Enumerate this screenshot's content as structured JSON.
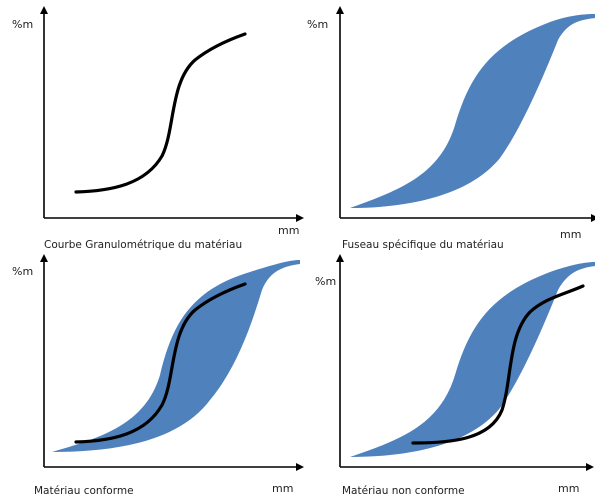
{
  "panels": [
    {
      "id": "curve-only",
      "y_label": "%m",
      "x_label": "mm",
      "caption": "Courbe Granulométrique du matériau",
      "show_band": false,
      "show_curve": true
    },
    {
      "id": "band-only",
      "y_label": "%m",
      "x_label": "mm",
      "caption": "Fuseau spécifique du matériau",
      "show_band": true,
      "show_curve": false
    },
    {
      "id": "conform",
      "y_label": "%m",
      "x_label": "mm",
      "caption": "Matériau conforme",
      "show_band": true,
      "show_curve": true
    },
    {
      "id": "non-conform",
      "y_label": "%m",
      "x_label": "mm",
      "caption": "Matériau non conforme",
      "show_band": true,
      "show_curve": true
    }
  ],
  "colors": {
    "band": "#4f81bd",
    "curve": "#000000",
    "axis": "#000000"
  }
}
